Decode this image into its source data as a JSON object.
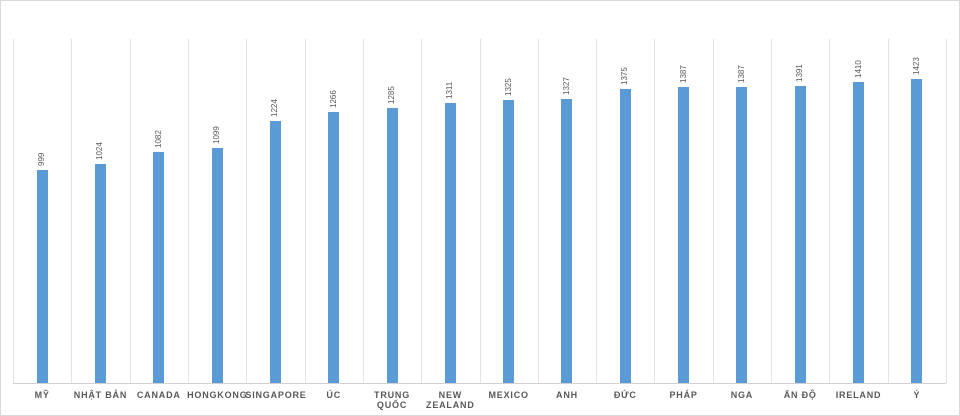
{
  "chart_data": {
    "type": "bar",
    "categories": [
      "MỸ",
      "NHẬT BẢN",
      "CANADA",
      "HONGKONG",
      "SINGAPORE",
      "ÚC",
      "TRUNG QUỐC",
      "NEW ZEALAND",
      "MEXICO",
      "ANH",
      "ĐỨC",
      "PHÁP",
      "NGA",
      "ẤN ĐỘ",
      "IRELAND",
      "Ý"
    ],
    "values": [
      999,
      1024,
      1082,
      1099,
      1224,
      1266,
      1285,
      1311,
      1325,
      1327,
      1375,
      1387,
      1387,
      1391,
      1410,
      1423
    ],
    "color": "#5b9bd5"
  }
}
